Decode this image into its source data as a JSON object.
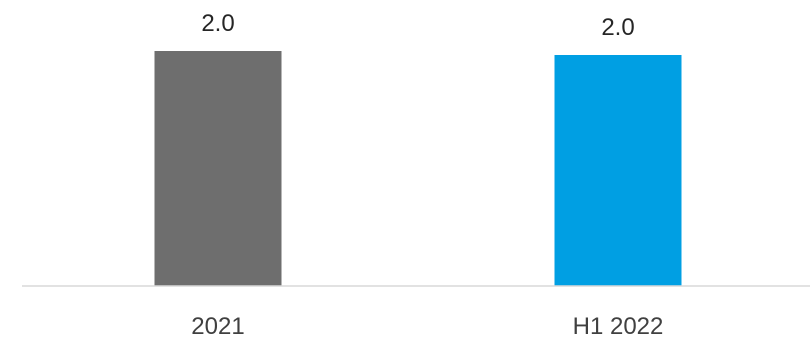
{
  "chart_data": {
    "type": "bar",
    "title": "",
    "xlabel": "",
    "ylabel": "",
    "categories": [
      "2021",
      "H1 2022"
    ],
    "values": [
      2.0,
      2.0
    ],
    "value_labels": [
      "2.0",
      "2.0"
    ],
    "colors": [
      "#6e6e6e",
      "#009fe3"
    ],
    "ylim": [
      0,
      2.0
    ],
    "grid": false,
    "legend": "none"
  }
}
